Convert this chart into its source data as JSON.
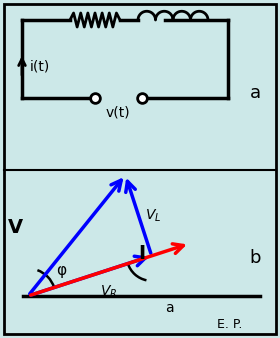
{
  "bg_color": "#cce8e8",
  "border_color": "#000000",
  "title_a": "a",
  "title_b": "b",
  "circuit": {
    "R_label": "R",
    "L_label": "L",
    "i_label": "i(t)",
    "v_label": "v(t)"
  },
  "phasor": {
    "phi_label": "φ",
    "VR_label": "V_R",
    "VL_label": "V_L",
    "V_label": "V",
    "I_label": "I",
    "a_label": "a",
    "EP_label": "E. P.",
    "arrow_color_blue": "#0000ff",
    "arrow_color_red": "#ff0000"
  },
  "font_size_labels": 11,
  "font_size_small": 9
}
